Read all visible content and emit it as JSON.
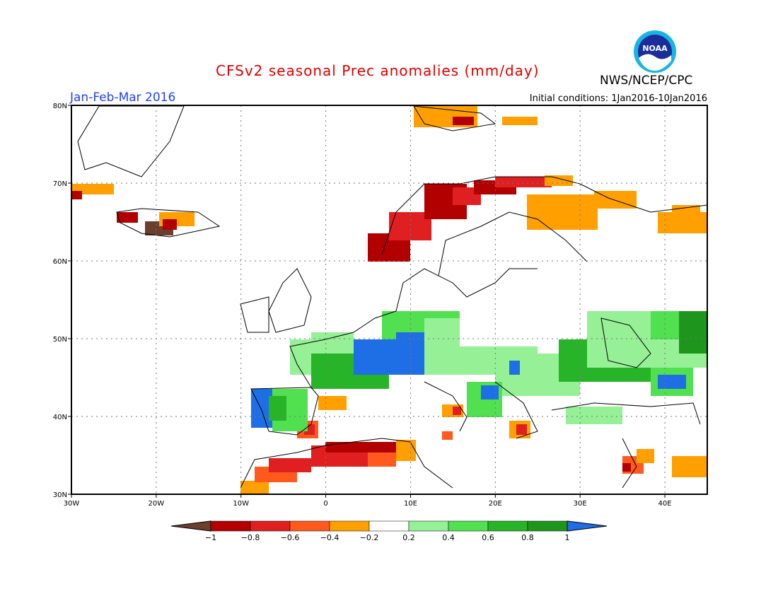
{
  "header": {
    "title": "CFSv2 seasonal Prec anomalies (mm/day)",
    "agency": "NWS/NCEP/CPC",
    "logo_text": "NOAA",
    "period": "Jan-Feb-Mar 2016",
    "initial_conditions": "Initial conditions: 1Jan2016-10Jan2016"
  },
  "map": {
    "lon_range": [
      -30,
      45
    ],
    "lat_range": [
      30,
      80
    ],
    "lon_ticks": [
      "30W",
      "20W",
      "10W",
      "0",
      "10E",
      "20E",
      "30E",
      "40E"
    ],
    "lat_ticks": [
      "80N",
      "70N",
      "60N",
      "50N",
      "40N",
      "30N"
    ],
    "grid_style": "dotted",
    "units": "mm/day"
  },
  "colorbar": {
    "labels": [
      "-1",
      "-0.8",
      "-0.6",
      "-0.4",
      "-0.2",
      "0.2",
      "0.4",
      "0.6",
      "0.8",
      "1"
    ],
    "colors": [
      "#6b3f2e",
      "#b20000",
      "#e02020",
      "#ff5a1e",
      "#ffa000",
      "#ffffff",
      "#96f096",
      "#50e050",
      "#28b428",
      "#1e961e",
      "#1e6ee6"
    ]
  },
  "colors": {
    "title": "#e00000",
    "period": "#1f3fff",
    "land_outline": "#000000"
  }
}
